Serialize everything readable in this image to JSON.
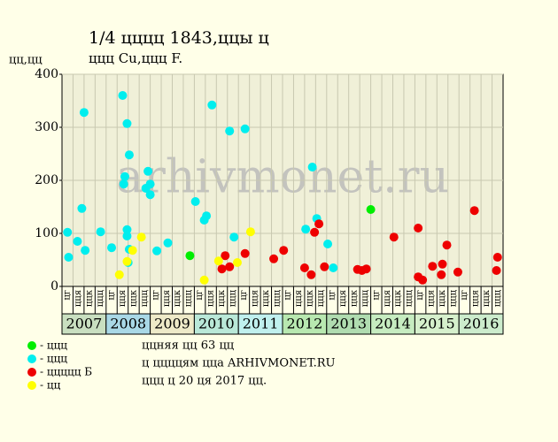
{
  "chart_data": {
    "type": "scatter",
    "title": "1/4 цццц 1843,ццы ц",
    "subtitle": "ццц Cu,ццц F.",
    "y_label": "цц,цц",
    "watermark": "arhivmonet.ru",
    "xlim": [
      0,
      40
    ],
    "ylim": [
      0,
      400
    ],
    "yticks": [
      0,
      100,
      200,
      300,
      400
    ],
    "grid": true,
    "categories": [
      "цг",
      "цця",
      "ццк",
      "ццц",
      "цг",
      "цця",
      "ццк",
      "ццц",
      "цг",
      "цця",
      "ццк",
      "ццц",
      "цг",
      "цця",
      "ццк",
      "ццц",
      "цг",
      "цця",
      "ццк",
      "ццц",
      "цг",
      "цця",
      "ццк",
      "ццц",
      "цг",
      "цця",
      "ццк",
      "ццц",
      "цг",
      "цця",
      "ццк",
      "ццц",
      "цг",
      "цця",
      "ццк",
      "ццц",
      "цг",
      "цця",
      "ццк",
      "ццц"
    ],
    "years": [
      "2007",
      "2008",
      "2009",
      "2010",
      "2011",
      "2012",
      "2013",
      "2014",
      "2015",
      "2016"
    ],
    "year_colors": [
      "#c9dfc0",
      "#a9d8e6",
      "#eeeac8",
      "#b9e8d8",
      "#c0f0ee",
      "#b8e8b0",
      "#b0dcb0",
      "#c6ecc0",
      "#d6f0cc",
      "#cceccc"
    ],
    "series": [
      {
        "name": "- ццц",
        "color": "#00ee00",
        "x": [
          11.6,
          28.0
        ],
        "values": [
          58,
          145
        ]
      },
      {
        "name": "- ццц",
        "color": "#00eeee",
        "x": [
          0.5,
          0.6,
          1.4,
          1.8,
          2.0,
          2.1,
          3.5,
          4.5,
          5.5,
          5.9,
          6.1,
          5.7,
          5.6,
          5.9,
          5.9,
          6.0,
          6.1,
          7.8,
          8.0,
          7.6,
          8.0,
          8.6,
          9.6,
          12.1,
          13.1,
          12.9,
          13.6,
          15.2,
          15.6,
          16.6,
          22.1,
          22.7,
          23.1,
          24.1,
          24.6
        ],
        "values": [
          102,
          55,
          85,
          147,
          328,
          68,
          103,
          73,
          360,
          307,
          248,
          207,
          193,
          107,
          95,
          45,
          70,
          217,
          193,
          185,
          173,
          67,
          82,
          160,
          133,
          125,
          342,
          293,
          93,
          297,
          108,
          225,
          128,
          80,
          35
        ]
      },
      {
        "name": "- ццццц Б",
        "color": "#ee0000",
        "x": [
          14.5,
          14.8,
          15.2,
          16.6,
          19.2,
          20.1,
          22.0,
          22.6,
          22.9,
          23.3,
          23.8,
          26.8,
          27.2,
          27.6,
          30.1,
          32.3,
          32.3,
          32.7,
          33.6,
          34.4,
          34.5,
          34.9,
          35.9,
          37.4,
          39.4,
          39.5
        ],
        "values": [
          33,
          58,
          37,
          62,
          52,
          68,
          35,
          22,
          102,
          118,
          37,
          32,
          30,
          33,
          93,
          110,
          18,
          12,
          38,
          22,
          42,
          78,
          27,
          143,
          30,
          55
        ]
      },
      {
        "name": "- цц",
        "color": "#ffff00",
        "x": [
          5.2,
          5.9,
          6.4,
          7.2,
          12.9,
          14.2,
          15.9,
          17.1
        ],
        "values": [
          22,
          47,
          68,
          93,
          12,
          48,
          45,
          103
        ]
      }
    ],
    "notes": [
      "ццняя цц 63 цц",
      "ц ццццям цца ARHIVMONET.RU",
      "ццц ц 20 ця 2017 цц."
    ]
  }
}
